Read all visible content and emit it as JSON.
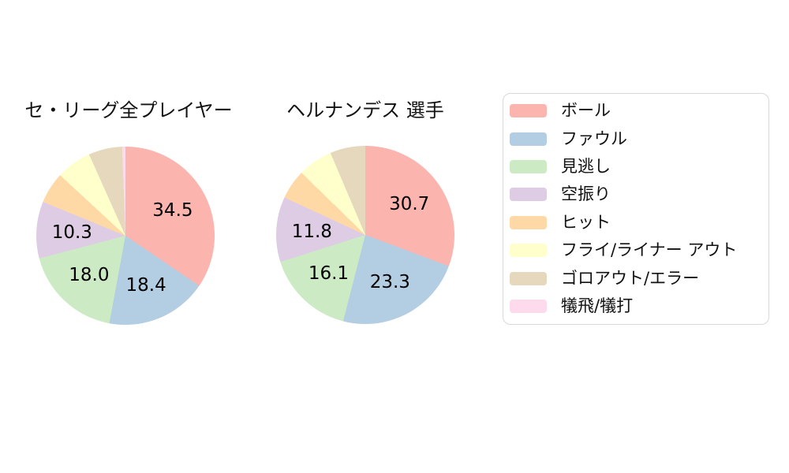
{
  "chart_data": [
    {
      "type": "pie",
      "title": "セ・リーグ全プレイヤー",
      "categories": [
        "ボール",
        "ファウル",
        "見逃し",
        "空振り",
        "ヒット",
        "フライ/ライナー アウト",
        "ゴロアウト/エラー",
        "犠飛/犠打"
      ],
      "values": [
        34.5,
        18.4,
        18.0,
        10.3,
        5.7,
        6.4,
        6.1,
        0.6
      ],
      "shown_value_labels": [
        "34.5",
        "18.4",
        "18.0",
        "10.3"
      ],
      "label_threshold": 10,
      "start_angle": "top",
      "direction": "clockwise",
      "label_radius_ratio": 0.6
    },
    {
      "type": "pie",
      "title": "ヘルナンデス 選手",
      "categories": [
        "ボール",
        "ファウル",
        "見逃し",
        "空振り",
        "ヒット",
        "フライ/ライナー アウト",
        "ゴロアウト/エラー",
        "犠飛/犠打"
      ],
      "values": [
        30.7,
        23.3,
        16.1,
        11.8,
        5.4,
        6.3,
        6.4,
        0.0
      ],
      "shown_value_labels": [
        "30.7",
        "23.3",
        "16.1",
        "11.8"
      ],
      "label_threshold": 10,
      "start_angle": "top",
      "direction": "clockwise",
      "label_radius_ratio": 0.6
    }
  ],
  "legend": {
    "position": "right",
    "items": [
      {
        "label": "ボール",
        "color": "#fbb4ae"
      },
      {
        "label": "ファウル",
        "color": "#b3cde3"
      },
      {
        "label": "見逃し",
        "color": "#ccebc5"
      },
      {
        "label": "空振り",
        "color": "#decbe4"
      },
      {
        "label": "ヒット",
        "color": "#fed9a6"
      },
      {
        "label": "フライ/ライナー アウト",
        "color": "#ffffcc"
      },
      {
        "label": "ゴロアウト/エラー",
        "color": "#e5d8bd"
      },
      {
        "label": "犠飛/犠打",
        "color": "#fddaec"
      }
    ]
  },
  "style": {
    "background_color": "#ffffff",
    "text_color": "#111111",
    "legend_border_color": "#d9d9d9"
  }
}
